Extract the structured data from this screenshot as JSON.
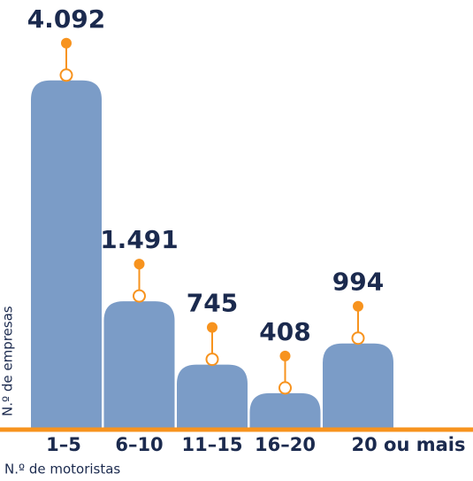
{
  "chart_data": {
    "type": "bar",
    "categories": [
      "1–5",
      "6–10",
      "11–15",
      "16–20",
      "20 ou mais"
    ],
    "values": [
      4092,
      1491,
      745,
      408,
      994
    ],
    "value_labels": [
      "4.092",
      "1.491",
      "745",
      "408",
      "994"
    ],
    "color": "#7b9cc7",
    "accent_color": "#f7931e",
    "ylim": [
      0,
      4100
    ],
    "xlabel": "N.º de motoristas",
    "ylabel": "N.º de empresas"
  }
}
